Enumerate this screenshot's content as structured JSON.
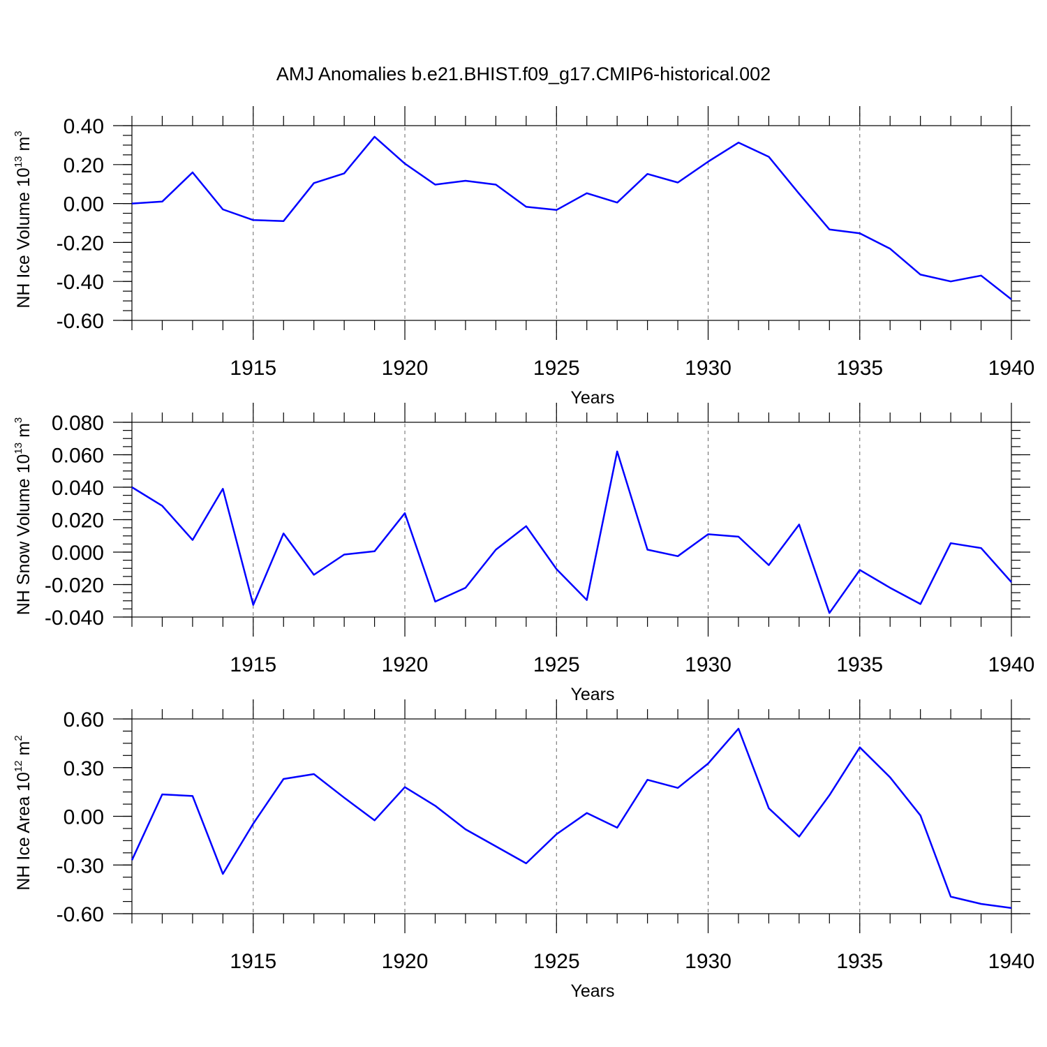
{
  "title": "AMJ Anomalies b.e21.BHIST.f09_g17.CMIP6-historical.002",
  "colors": {
    "series": "#0000ff",
    "grid": "#666666",
    "axis": "#000000"
  },
  "chart_data": [
    {
      "type": "line",
      "xlabel": "Years",
      "ylabel": {
        "text": "NH Ice Volume 10",
        "sup": "13",
        "unit": " m",
        "unit_sup": "3"
      },
      "xlim": [
        1911,
        1940
      ],
      "ylim": [
        -0.6,
        0.4
      ],
      "x_ticks": [
        1915,
        1920,
        1925,
        1930,
        1935,
        1940
      ],
      "y_ticks": [
        -0.6,
        -0.4,
        -0.2,
        0.0,
        0.2,
        0.4
      ],
      "y_tick_labels": [
        "-0.60",
        "-0.40",
        "-0.20",
        "0.00",
        "0.20",
        "0.40"
      ],
      "y_minor_step": 0.05,
      "grid": "vertical dashed at major x ticks",
      "series": [
        {
          "x": [
            1911,
            1912,
            1913,
            1914,
            1915,
            1916,
            1917,
            1918,
            1919,
            1920,
            1921,
            1922,
            1923,
            1924,
            1925,
            1926,
            1927,
            1928,
            1929,
            1930,
            1931,
            1932,
            1933,
            1934,
            1935,
            1936,
            1937,
            1938,
            1939,
            1940
          ],
          "y": [
            0.0,
            0.01,
            0.16,
            -0.03,
            -0.085,
            -0.09,
            0.105,
            0.155,
            0.343,
            0.205,
            0.097,
            0.117,
            0.097,
            -0.017,
            -0.033,
            0.053,
            0.005,
            0.152,
            0.108,
            0.215,
            0.313,
            0.24,
            0.05,
            -0.133,
            -0.153,
            -0.232,
            -0.365,
            -0.4,
            -0.37,
            -0.492
          ]
        }
      ]
    },
    {
      "type": "line",
      "xlabel": "Years",
      "ylabel": {
        "text": "NH Snow Volume 10",
        "sup": "13",
        "unit": " m",
        "unit_sup": "3"
      },
      "xlim": [
        1911,
        1940
      ],
      "ylim": [
        -0.04,
        0.08
      ],
      "x_ticks": [
        1915,
        1920,
        1925,
        1930,
        1935,
        1940
      ],
      "y_ticks": [
        -0.04,
        -0.02,
        0.0,
        0.02,
        0.04,
        0.06,
        0.08
      ],
      "y_tick_labels": [
        "-0.040",
        "-0.020",
        "0.000",
        "0.020",
        "0.040",
        "0.060",
        "0.080"
      ],
      "y_minor_step": 0.005,
      "grid": "vertical dashed at major x ticks",
      "series": [
        {
          "x": [
            1911,
            1912,
            1913,
            1914,
            1915,
            1916,
            1917,
            1918,
            1919,
            1920,
            1921,
            1922,
            1923,
            1924,
            1925,
            1926,
            1927,
            1928,
            1929,
            1930,
            1931,
            1932,
            1933,
            1934,
            1935,
            1936,
            1937,
            1938,
            1939,
            1940
          ],
          "y": [
            0.04,
            0.0285,
            0.0075,
            0.039,
            -0.0325,
            0.0115,
            -0.014,
            -0.0015,
            0.0005,
            0.024,
            -0.0305,
            -0.022,
            0.0015,
            0.016,
            -0.0105,
            -0.0295,
            0.062,
            0.0015,
            -0.0025,
            0.011,
            0.0095,
            -0.008,
            0.017,
            -0.0375,
            -0.011,
            -0.022,
            -0.032,
            0.0055,
            0.0025,
            -0.0185
          ]
        }
      ]
    },
    {
      "type": "line",
      "xlabel": "Years",
      "ylabel": {
        "text": "NH Ice Area 10",
        "sup": "12",
        "unit": " m",
        "unit_sup": "2"
      },
      "xlim": [
        1911,
        1940
      ],
      "ylim": [
        -0.6,
        0.6
      ],
      "x_ticks": [
        1915,
        1920,
        1925,
        1930,
        1935,
        1940
      ],
      "y_ticks": [
        -0.6,
        -0.3,
        0.0,
        0.3,
        0.6
      ],
      "y_tick_labels": [
        "-0.60",
        "-0.30",
        "0.00",
        "0.30",
        "0.60"
      ],
      "y_minor_step": 0.075,
      "grid": "vertical dashed at major x ticks",
      "series": [
        {
          "x": [
            1911,
            1912,
            1913,
            1914,
            1915,
            1916,
            1917,
            1918,
            1919,
            1920,
            1921,
            1922,
            1923,
            1924,
            1925,
            1926,
            1927,
            1928,
            1929,
            1930,
            1931,
            1932,
            1933,
            1934,
            1935,
            1936,
            1937,
            1938,
            1939,
            1940
          ],
          "y": [
            -0.27,
            0.135,
            0.125,
            -0.355,
            -0.045,
            0.23,
            0.26,
            0.115,
            -0.025,
            0.18,
            0.065,
            -0.08,
            -0.185,
            -0.29,
            -0.11,
            0.02,
            -0.07,
            0.225,
            0.175,
            0.325,
            0.54,
            0.05,
            -0.125,
            0.13,
            0.425,
            0.24,
            0.005,
            -0.495,
            -0.54,
            -0.565
          ]
        }
      ]
    }
  ]
}
